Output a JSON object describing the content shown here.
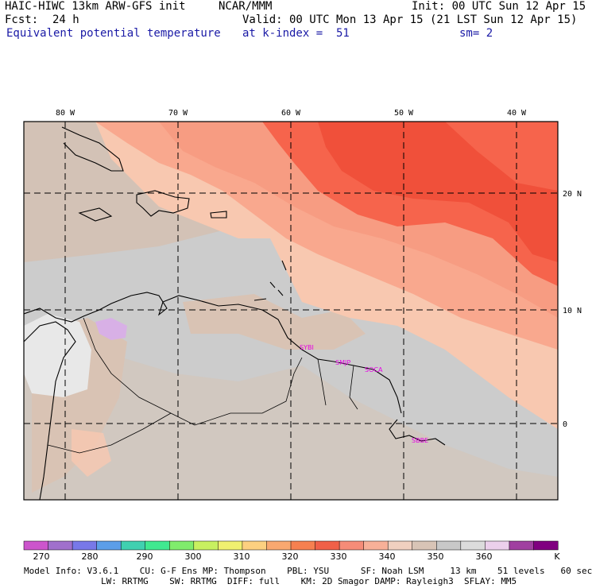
{
  "header": {
    "line1_left": "HAIC-HIWC 13km ARW-GFS init",
    "line1_mid": "NCAR/MMM",
    "line1_right": "Init: 00 UTC Sun 12 Apr 15",
    "fcst_label": "Fcst:",
    "fcst_value": "24 h",
    "valid": "Valid: 00 UTC Mon 13 Apr 15 (21 LST Sun 12 Apr 15)",
    "field": "Equivalent potential temperature",
    "level": "at k-index =  51",
    "smoothing": "sm= 2"
  },
  "map": {
    "lon_labels": [
      "80 W",
      "70 W",
      "60 W",
      "50 W",
      "40 W"
    ],
    "lat_labels": [
      "20 N",
      "10 N",
      "0"
    ],
    "stations": [
      "SYBI",
      "SMJP",
      "SOCA",
      "SBBE"
    ],
    "colors": {
      "deep_red": "#f0503a",
      "red": "#f6644c",
      "salmon": "#f79c82",
      "peach": "#f8c8b0",
      "tan": "#d9c3b4",
      "gray": "#cccccc",
      "light": "#e6e6e6",
      "lilac": "#d8b0e6"
    }
  },
  "colorbar": {
    "labels": [
      "270",
      "280",
      "290",
      "300",
      "310",
      "320",
      "330",
      "340",
      "350",
      "360"
    ],
    "unit": "K",
    "colors": [
      "#cc55cc",
      "#a070cc",
      "#7878e8",
      "#5c9ee8",
      "#40d0b0",
      "#40e890",
      "#80ec6c",
      "#c8f060",
      "#f0f070",
      "#fcd080",
      "#f9a870",
      "#f68050",
      "#f06048",
      "#f68c78",
      "#f8b098",
      "#f0d0c0",
      "#d8c4b6",
      "#c8c8c8",
      "#dcdcdc",
      "#ecd0ec",
      "#a040a0",
      "#800080"
    ]
  },
  "footer": {
    "line1": "Model Info: V3.6.1    CU: G-F Ens MP: Thompson    PBL: YSU      SF: Noah LSM     13 km    51 levels   60 sec",
    "line2": "LW: RRTMG    SW: RRTMG  DIFF: full    KM: 2D Smagor DAMP: Rayleigh3  SFLAY: MM5"
  }
}
